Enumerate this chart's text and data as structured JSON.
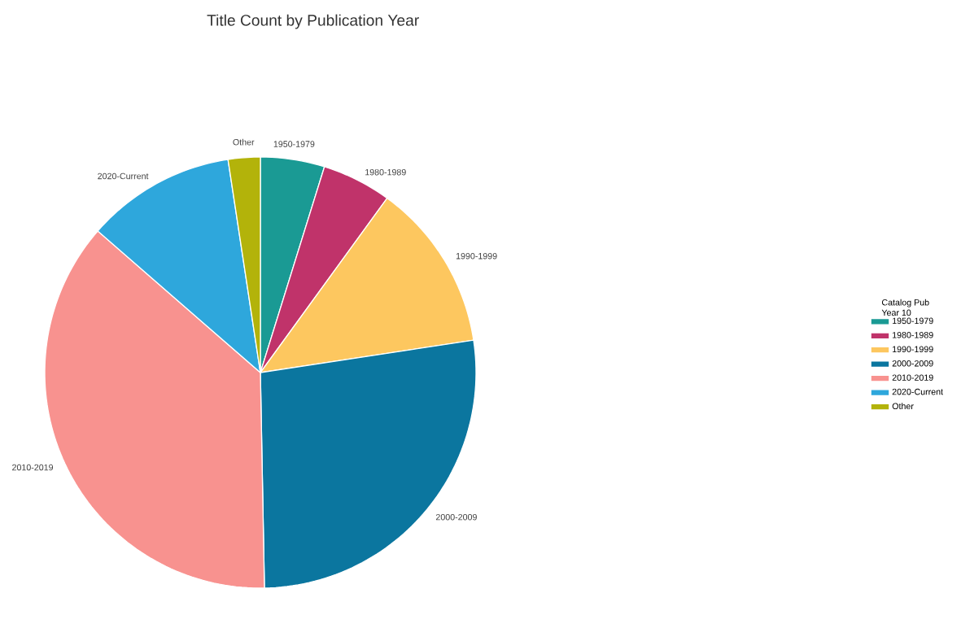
{
  "chart_data": {
    "type": "pie",
    "title": "Title Count by Publication Year",
    "legend_title": "Catalog Pub Year 10",
    "legend": "right",
    "categories": [
      "1950-1979",
      "1980-1989",
      "1990-1999",
      "2000-2009",
      "2010-2019",
      "2020-Current",
      "Other"
    ],
    "values": [
      4.8,
      5.2,
      12.6,
      27.1,
      36.7,
      11.2,
      2.4
    ],
    "colors": [
      "#1a9a94",
      "#c0336a",
      "#fdc75f",
      "#0b769f",
      "#f8928f",
      "#2ea7dc",
      "#b3b30a"
    ]
  }
}
